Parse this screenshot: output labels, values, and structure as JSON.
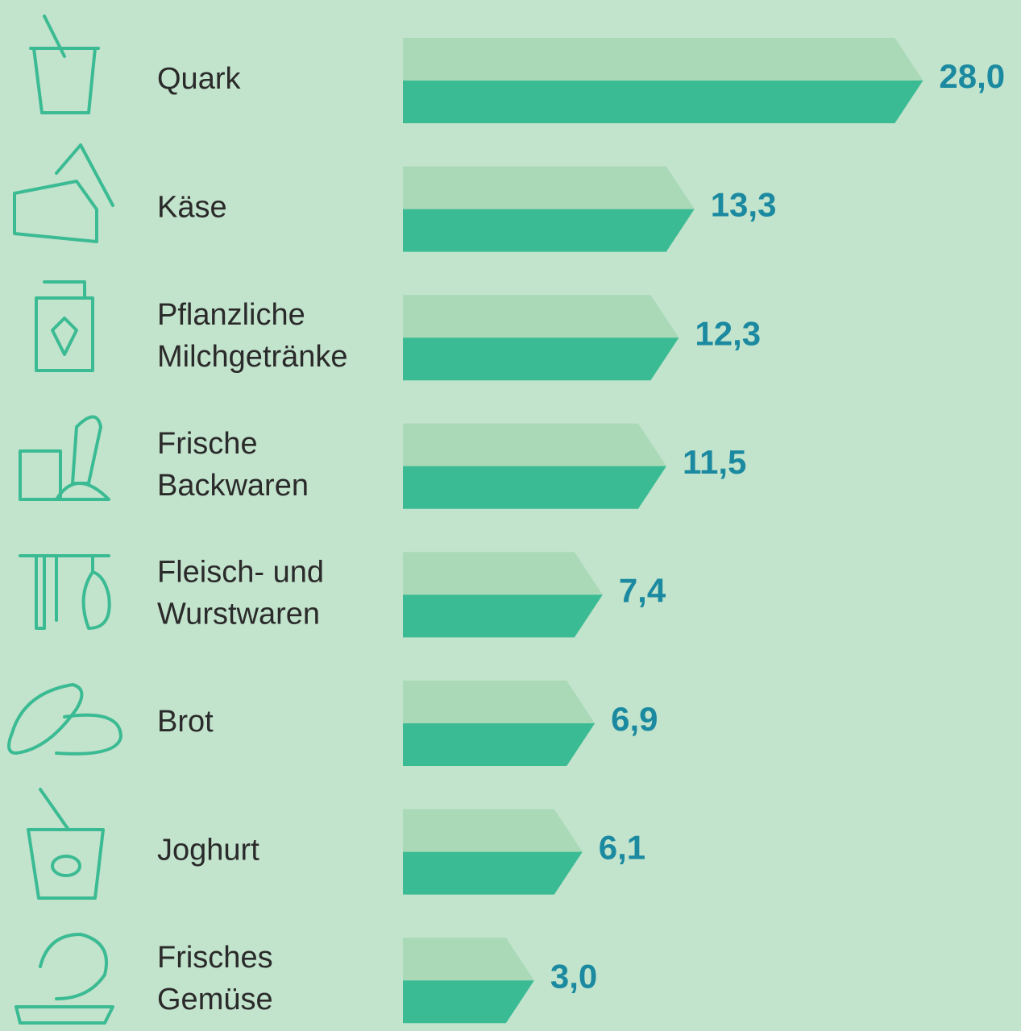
{
  "chart_data": {
    "type": "bar",
    "categories": [
      [
        "Quark"
      ],
      [
        "Käse"
      ],
      [
        "Pflanzliche",
        "Milchgetränke"
      ],
      [
        "Frische",
        "Backwaren"
      ],
      [
        "Fleisch- und",
        "Wurstwaren"
      ],
      [
        "Brot"
      ],
      [
        "Joghurt"
      ],
      [
        "Frisches",
        "Gemüse"
      ]
    ],
    "values": [
      28.0,
      13.3,
      12.3,
      11.5,
      7.4,
      6.9,
      6.1,
      3.0
    ],
    "value_labels": [
      "28,0",
      "13,3",
      "12,3",
      "11,5",
      "7,4",
      "6,9",
      "6,1",
      "3,0"
    ],
    "colors": {
      "top": "#a9d9b7",
      "bottom": "#3bbb93",
      "label": "#1b8aa0"
    }
  }
}
